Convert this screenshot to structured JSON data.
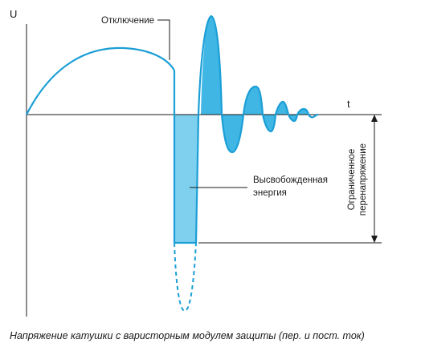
{
  "diagram": {
    "axis": {
      "y_label": "U",
      "x_label": "t"
    },
    "annotations": {
      "cutoff": "Отключение",
      "released_energy_line1": "Высвобожденная",
      "released_energy_line2": "энергия",
      "limited_overvoltage_line1": "Ограниченное",
      "limited_overvoltage_line2": "перенапряжение"
    },
    "caption": "Напряжение катушки с варисторным модулем защиты (пер. и пост. ток)",
    "colors": {
      "curve": "#1b9fd6",
      "fill_released_energy": "#7fcfee",
      "fill_oscillation": "#3fb6e4",
      "axis": "#1a1a1a",
      "text": "#1a1a1a"
    }
  }
}
